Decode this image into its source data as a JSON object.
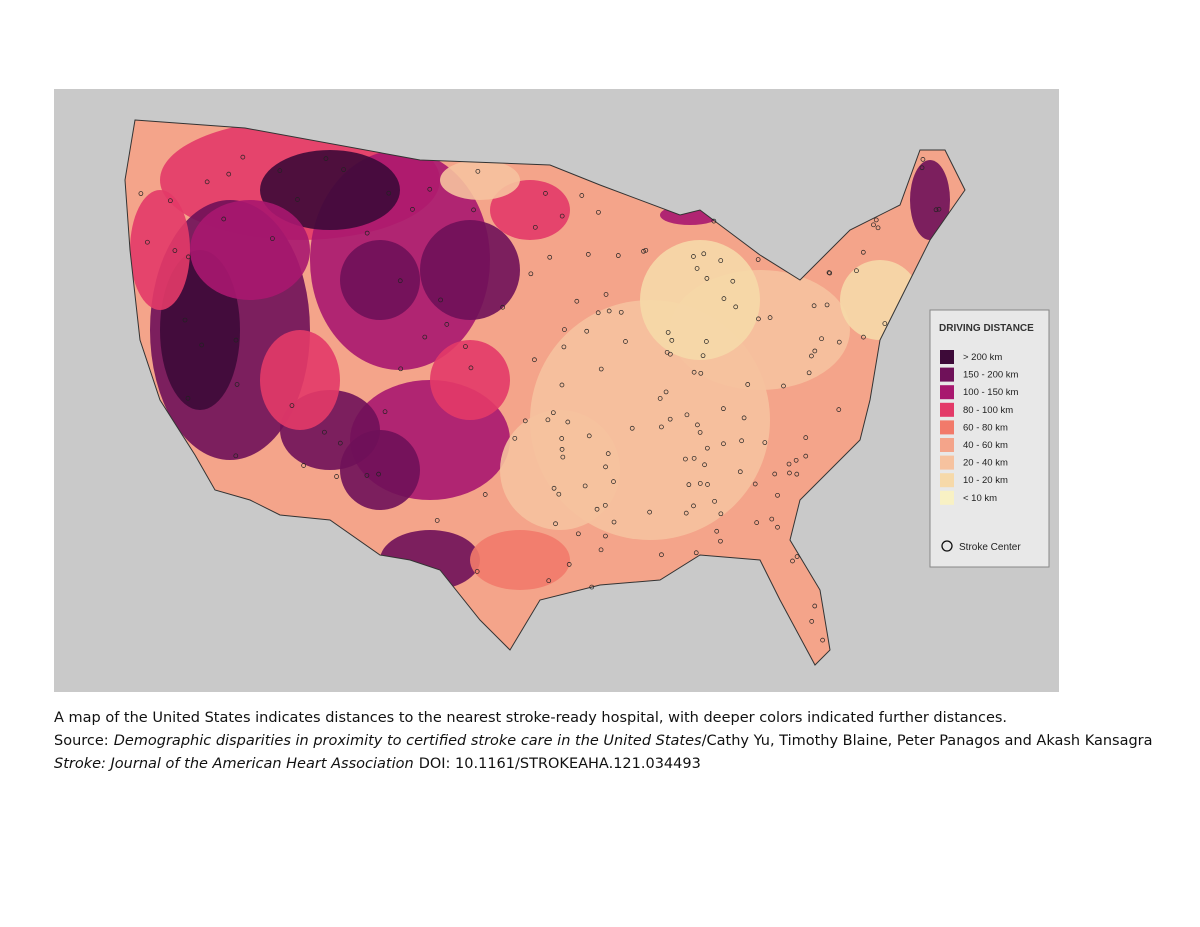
{
  "legend": {
    "title": "DRIVING DISTANCE",
    "items": [
      {
        "label": "> 200 km",
        "color": "#3d0a38"
      },
      {
        "label": "150 - 200 km",
        "color": "#6f1159"
      },
      {
        "label": "100 - 150 km",
        "color": "#a8176f"
      },
      {
        "label": "80 - 100 km",
        "color": "#e33a68"
      },
      {
        "label": "60 - 80 km",
        "color": "#f27a6a"
      },
      {
        "label": "40 - 60 km",
        "color": "#f4a48a"
      },
      {
        "label": "20 - 40 km",
        "color": "#f6c29f"
      },
      {
        "label": "10 - 20 km",
        "color": "#f6d9a9"
      },
      {
        "label": "< 10 km",
        "color": "#f8f1c4"
      }
    ],
    "marker_label": "Stroke Center"
  },
  "caption": {
    "line1": "A map of the United States indicates distances to the nearest stroke-ready hospital, with deeper colors indicated further distances.",
    "source_label": "Source:",
    "source_title": "Demographic disparities in proximity to certified stroke care in the United States",
    "authors": "/Cathy Yu, Timothy Blaine, Peter Panagos and Akash Kansagra",
    "journal": "Stroke: Journal of the American Heart Association",
    "doi": "DOI: 10.1161/STROKEAHA.121.034493"
  }
}
